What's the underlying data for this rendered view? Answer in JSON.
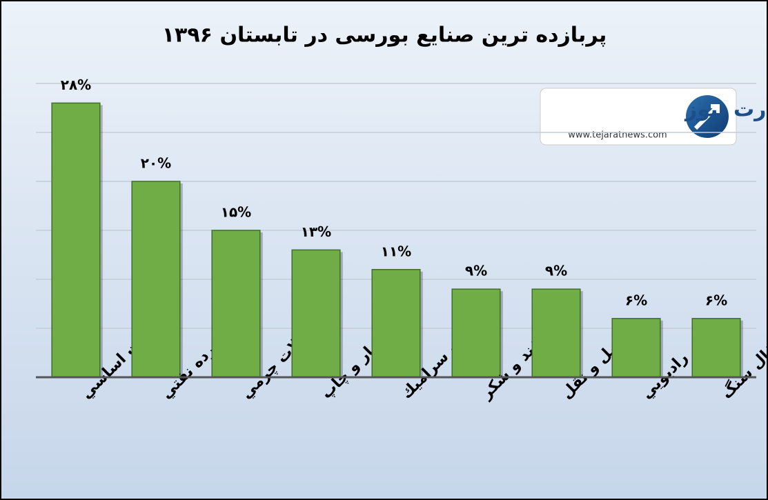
{
  "chart_data": {
    "type": "bar",
    "title": "پربازده ترین صنایع بورسی در  تابستان ۱۳۹۶",
    "categories": [
      "فلزات اساسي",
      "فراورده نفتي",
      "محصولات چرمي",
      "انتشار و چاپ",
      "كاشي و سراميك",
      "قند و شكر",
      "حمل و نقل",
      "راديويي",
      "ذغال سنگ"
    ],
    "values": [
      28,
      20,
      15,
      13,
      11,
      9,
      9,
      6,
      6
    ],
    "value_labels": [
      "۲۸%",
      "۲۰%",
      "۱۵%",
      "۱۳%",
      "۱۱%",
      "۹%",
      "۹%",
      "۶%",
      "۶%"
    ],
    "color": "#70ad47",
    "ylim": [
      0,
      30
    ],
    "yticks": [
      0,
      5,
      10,
      15,
      20,
      25,
      30
    ],
    "grid": true,
    "annotations": [
      "تجارت نیوز",
      "www.tejaratnews.com"
    ]
  }
}
